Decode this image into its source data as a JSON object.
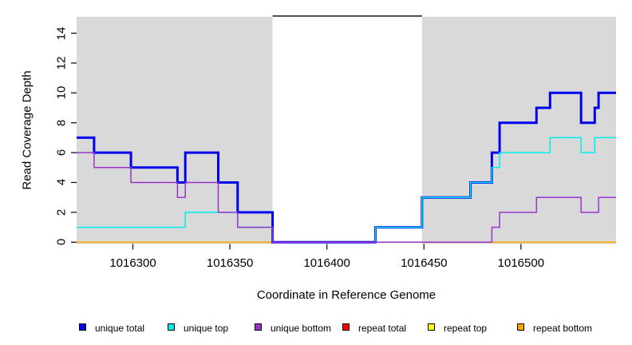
{
  "figure": {
    "xlabel": "Coordinate in Reference Genome",
    "ylabel": "Read Coverage Depth"
  },
  "chart_data": {
    "type": "line",
    "subtype": "step-coverage",
    "title": "",
    "xlabel": "Coordinate in Reference Genome",
    "ylabel": "Read Coverage Depth",
    "xlim": [
      1016271,
      1016549
    ],
    "ylim": [
      -0.12,
      15.1
    ],
    "xticks": [
      1016300,
      1016350,
      1016400,
      1016450,
      1016500
    ],
    "yticks": [
      0,
      2,
      4,
      6,
      8,
      10,
      12,
      14
    ],
    "grid": "off",
    "plot_background": "#FFFFFF",
    "shaded_regions": [
      {
        "x1": 1016271,
        "x2": 1016372,
        "color": "#D9D9D9"
      },
      {
        "x1": 1016449,
        "x2": 1016549,
        "color": "#D9D9D9"
      }
    ],
    "gap_marker": {
      "x1": 1016372,
      "x2": 1016449,
      "y": 15.15,
      "color": "#000000",
      "width": 1.4
    },
    "series": [
      {
        "name": "repeat total",
        "color": "#FF0000",
        "line_width": 1.5,
        "xend": 1016549,
        "steps": [
          [
            1016271,
            0
          ]
        ]
      },
      {
        "name": "repeat top",
        "color": "#FFFF00",
        "line_width": 1.5,
        "xend": 1016549,
        "steps": [
          [
            1016271,
            0
          ]
        ]
      },
      {
        "name": "repeat bottom",
        "color": "#FFA500",
        "line_width": 1.6,
        "xend": 1016549,
        "steps": [
          [
            1016271,
            0
          ]
        ]
      },
      {
        "name": "unique total",
        "color": "#0000EE",
        "line_width": 3,
        "xend": 1016549,
        "steps": [
          [
            1016271,
            7
          ],
          [
            1016280,
            6
          ],
          [
            1016299,
            5
          ],
          [
            1016323,
            4
          ],
          [
            1016327,
            6
          ],
          [
            1016344,
            4
          ],
          [
            1016354,
            2
          ],
          [
            1016372,
            0
          ],
          [
            1016425,
            1
          ],
          [
            1016449,
            3
          ],
          [
            1016474,
            4
          ],
          [
            1016485,
            6
          ],
          [
            1016489,
            8
          ],
          [
            1016508,
            9
          ],
          [
            1016515,
            10
          ],
          [
            1016531,
            8
          ],
          [
            1016538,
            9
          ],
          [
            1016540,
            10
          ]
        ]
      },
      {
        "name": "unique top",
        "color": "#00EEEE",
        "line_width": 1.5,
        "xend": 1016549,
        "steps": [
          [
            1016271,
            1
          ],
          [
            1016327,
            2
          ],
          [
            1016354,
            1
          ],
          [
            1016372,
            0
          ],
          [
            1016425,
            1
          ],
          [
            1016449,
            3
          ],
          [
            1016474,
            4
          ],
          [
            1016485,
            5
          ],
          [
            1016489,
            6
          ],
          [
            1016515,
            7
          ],
          [
            1016531,
            6
          ],
          [
            1016538,
            7
          ]
        ]
      },
      {
        "name": "unique bottom",
        "color": "#9933CC",
        "line_width": 1.5,
        "xend": 1016549,
        "steps": [
          [
            1016271,
            6
          ],
          [
            1016280,
            5
          ],
          [
            1016299,
            4
          ],
          [
            1016323,
            3
          ],
          [
            1016327,
            4
          ],
          [
            1016344,
            2
          ],
          [
            1016354,
            1
          ],
          [
            1016372,
            0
          ],
          [
            1016485,
            1
          ],
          [
            1016489,
            2
          ],
          [
            1016508,
            3
          ],
          [
            1016531,
            2
          ],
          [
            1016540,
            3
          ]
        ]
      }
    ],
    "legend": {
      "position": "bottom",
      "items": [
        {
          "label": "unique total",
          "color": "#0000EE"
        },
        {
          "label": "unique top",
          "color": "#00EEEE"
        },
        {
          "label": "unique bottom",
          "color": "#9933CC"
        },
        {
          "label": "repeat total",
          "color": "#FF0000"
        },
        {
          "label": "repeat top",
          "color": "#FFFF00"
        },
        {
          "label": "repeat bottom",
          "color": "#FFA500"
        }
      ]
    }
  }
}
